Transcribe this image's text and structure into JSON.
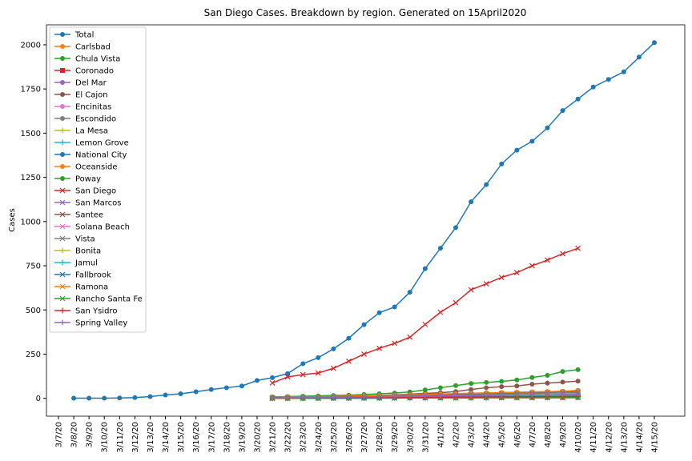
{
  "chart_data": {
    "type": "line",
    "title": "San Diego Cases. Breakdown by region. Generated on 15April2020",
    "ylabel": "Cases",
    "categories": [
      "3/7/20",
      "3/8/20",
      "3/9/20",
      "3/10/20",
      "3/11/20",
      "3/12/20",
      "3/13/20",
      "3/14/20",
      "3/15/20",
      "3/16/20",
      "3/17/20",
      "3/18/20",
      "3/19/20",
      "3/20/20",
      "3/21/20",
      "3/22/20",
      "3/23/20",
      "3/24/20",
      "3/25/20",
      "3/26/20",
      "3/27/20",
      "3/28/20",
      "3/29/20",
      "3/30/20",
      "3/31/20",
      "4/1/20",
      "4/2/20",
      "4/3/20",
      "4/4/20",
      "4/5/20",
      "4/6/20",
      "4/7/20",
      "4/8/20",
      "4/9/20",
      "4/10/20",
      "4/11/20",
      "4/12/20",
      "4/13/20",
      "4/14/20",
      "4/15/20"
    ],
    "ylim": [
      -101,
      2113
    ],
    "yticks": [
      0,
      250,
      500,
      750,
      1000,
      1250,
      1500,
      1750,
      2000
    ],
    "grid": false,
    "legend": "upper left",
    "series": [
      {
        "name": "Total",
        "color": "#1f77b4",
        "marker": "o",
        "values": [
          null,
          1,
          1,
          1,
          2,
          4,
          10,
          19,
          26,
          37,
          50,
          60,
          70,
          101,
          117,
          140,
          196,
          230,
          280,
          340,
          417,
          484,
          517,
          600,
          734,
          849,
          966,
          1112,
          1209,
          1326,
          1404,
          1454,
          1530,
          1628,
          1693,
          1761,
          1804,
          1847,
          1930,
          2012
        ]
      },
      {
        "name": "Carlsbad",
        "color": "#ff7f0e",
        "marker": "o",
        "values": [
          null,
          null,
          null,
          null,
          null,
          null,
          null,
          null,
          null,
          null,
          null,
          null,
          null,
          null,
          8,
          9,
          10,
          11,
          12,
          13,
          15,
          17,
          19,
          21,
          23,
          25,
          27,
          29,
          31,
          33,
          35,
          36,
          38,
          39,
          40,
          null,
          null,
          null,
          null,
          null
        ]
      },
      {
        "name": "Chula Vista",
        "color": "#2ca02c",
        "marker": "o",
        "values": [
          null,
          null,
          null,
          null,
          null,
          null,
          null,
          null,
          null,
          null,
          null,
          null,
          null,
          null,
          8,
          10,
          12,
          14,
          16,
          18,
          22,
          26,
          30,
          36,
          48,
          60,
          72,
          84,
          90,
          96,
          104,
          118,
          130,
          152,
          162,
          null,
          null,
          null,
          null,
          null
        ]
      },
      {
        "name": "Coronado",
        "color": "#d62728",
        "marker": "s",
        "values": [
          null,
          null,
          null,
          null,
          null,
          null,
          null,
          null,
          null,
          null,
          null,
          null,
          null,
          null,
          1,
          1,
          2,
          2,
          2,
          3,
          3,
          4,
          4,
          5,
          5,
          6,
          6,
          7,
          7,
          8,
          8,
          9,
          9,
          10,
          10,
          null,
          null,
          null,
          null,
          null
        ]
      },
      {
        "name": "Del Mar",
        "color": "#9467bd",
        "marker": "o",
        "values": [
          null,
          null,
          null,
          null,
          null,
          null,
          null,
          null,
          null,
          null,
          null,
          null,
          null,
          null,
          0,
          0,
          0,
          1,
          1,
          1,
          1,
          1,
          2,
          2,
          2,
          2,
          2,
          3,
          3,
          3,
          3,
          3,
          3,
          3,
          3,
          null,
          null,
          null,
          null,
          null
        ]
      },
      {
        "name": "El Cajon",
        "color": "#8c564b",
        "marker": "o",
        "values": [
          null,
          null,
          null,
          null,
          null,
          null,
          null,
          null,
          null,
          null,
          null,
          null,
          null,
          null,
          2,
          3,
          4,
          6,
          8,
          10,
          12,
          16,
          20,
          24,
          28,
          32,
          38,
          50,
          60,
          66,
          70,
          80,
          86,
          92,
          97,
          null,
          null,
          null,
          null,
          null
        ]
      },
      {
        "name": "Encinitas",
        "color": "#e377c2",
        "marker": "o",
        "values": [
          null,
          null,
          null,
          null,
          null,
          null,
          null,
          null,
          null,
          null,
          null,
          null,
          null,
          null,
          3,
          3,
          4,
          5,
          6,
          7,
          8,
          9,
          10,
          11,
          12,
          13,
          14,
          15,
          16,
          17,
          18,
          18,
          19,
          20,
          21,
          null,
          null,
          null,
          null,
          null
        ]
      },
      {
        "name": "Escondido",
        "color": "#7f7f7f",
        "marker": "o",
        "values": [
          null,
          null,
          null,
          null,
          null,
          null,
          null,
          null,
          null,
          null,
          null,
          null,
          null,
          null,
          4,
          5,
          6,
          7,
          8,
          10,
          12,
          14,
          16,
          18,
          20,
          22,
          24,
          26,
          28,
          30,
          32,
          34,
          36,
          40,
          45,
          null,
          null,
          null,
          null,
          null
        ]
      },
      {
        "name": "La Mesa",
        "color": "#bcbd22",
        "marker": "+",
        "values": [
          null,
          null,
          null,
          null,
          null,
          null,
          null,
          null,
          null,
          null,
          null,
          null,
          null,
          null,
          2,
          3,
          4,
          5,
          6,
          7,
          8,
          10,
          12,
          14,
          16,
          18,
          20,
          22,
          24,
          25,
          26,
          27,
          28,
          29,
          30,
          null,
          null,
          null,
          null,
          null
        ]
      },
      {
        "name": "Lemon Grove",
        "color": "#17becf",
        "marker": "+",
        "values": [
          null,
          null,
          null,
          null,
          null,
          null,
          null,
          null,
          null,
          null,
          null,
          null,
          null,
          null,
          1,
          1,
          2,
          2,
          3,
          3,
          4,
          5,
          6,
          7,
          8,
          9,
          10,
          11,
          12,
          13,
          14,
          15,
          16,
          17,
          18,
          null,
          null,
          null,
          null,
          null
        ]
      },
      {
        "name": "National City",
        "color": "#1f77b4",
        "marker": "o",
        "values": [
          null,
          null,
          null,
          null,
          null,
          null,
          null,
          null,
          null,
          null,
          null,
          null,
          null,
          null,
          3,
          4,
          5,
          6,
          7,
          8,
          10,
          12,
          14,
          16,
          18,
          20,
          22,
          24,
          26,
          28,
          30,
          32,
          34,
          36,
          38,
          null,
          null,
          null,
          null,
          null
        ]
      },
      {
        "name": "Oceanside",
        "color": "#ff7f0e",
        "marker": "o",
        "values": [
          null,
          null,
          null,
          null,
          null,
          null,
          null,
          null,
          null,
          null,
          null,
          null,
          null,
          null,
          6,
          7,
          8,
          9,
          10,
          12,
          14,
          16,
          18,
          20,
          22,
          24,
          26,
          28,
          30,
          32,
          34,
          36,
          38,
          40,
          42,
          null,
          null,
          null,
          null,
          null
        ]
      },
      {
        "name": "Poway",
        "color": "#2ca02c",
        "marker": "o",
        "values": [
          null,
          null,
          null,
          null,
          null,
          null,
          null,
          null,
          null,
          null,
          null,
          null,
          null,
          null,
          1,
          1,
          1,
          2,
          2,
          3,
          3,
          4,
          4,
          5,
          5,
          6,
          6,
          7,
          7,
          8,
          8,
          9,
          9,
          10,
          10,
          null,
          null,
          null,
          null,
          null
        ]
      },
      {
        "name": "San Diego",
        "color": "#d62728",
        "marker": "x",
        "values": [
          null,
          null,
          null,
          null,
          null,
          null,
          null,
          null,
          null,
          null,
          null,
          null,
          null,
          null,
          87,
          121,
          134,
          143,
          170,
          210,
          250,
          283,
          311,
          346,
          418,
          487,
          541,
          614,
          648,
          684,
          711,
          750,
          782,
          818,
          849,
          null,
          null,
          null,
          null,
          null
        ]
      },
      {
        "name": "San Marcos",
        "color": "#9467bd",
        "marker": "x",
        "values": [
          null,
          null,
          null,
          null,
          null,
          null,
          null,
          null,
          null,
          null,
          null,
          null,
          null,
          null,
          2,
          3,
          4,
          5,
          6,
          7,
          8,
          9,
          10,
          11,
          12,
          13,
          14,
          15,
          16,
          17,
          18,
          19,
          20,
          22,
          24,
          null,
          null,
          null,
          null,
          null
        ]
      },
      {
        "name": "Santee",
        "color": "#8c564b",
        "marker": "x",
        "values": [
          null,
          null,
          null,
          null,
          null,
          null,
          null,
          null,
          null,
          null,
          null,
          null,
          null,
          null,
          3,
          4,
          5,
          6,
          7,
          8,
          9,
          10,
          12,
          14,
          16,
          18,
          20,
          22,
          24,
          26,
          28,
          30,
          32,
          34,
          36,
          null,
          null,
          null,
          null,
          null
        ]
      },
      {
        "name": "Solana Beach",
        "color": "#e377c2",
        "marker": "x",
        "values": [
          null,
          null,
          null,
          null,
          null,
          null,
          null,
          null,
          null,
          null,
          null,
          null,
          null,
          null,
          0,
          0,
          1,
          1,
          1,
          1,
          2,
          2,
          2,
          2,
          3,
          3,
          3,
          3,
          4,
          4,
          4,
          4,
          5,
          5,
          5,
          null,
          null,
          null,
          null,
          null
        ]
      },
      {
        "name": "Vista",
        "color": "#7f7f7f",
        "marker": "x",
        "values": [
          null,
          null,
          null,
          null,
          null,
          null,
          null,
          null,
          null,
          null,
          null,
          null,
          null,
          null,
          2,
          3,
          4,
          5,
          6,
          7,
          8,
          9,
          10,
          12,
          14,
          16,
          18,
          20,
          22,
          24,
          26,
          28,
          30,
          32,
          34,
          null,
          null,
          null,
          null,
          null
        ]
      },
      {
        "name": "Bonita",
        "color": "#bcbd22",
        "marker": "+",
        "values": [
          null,
          null,
          null,
          null,
          null,
          null,
          null,
          null,
          null,
          null,
          null,
          null,
          null,
          null,
          0,
          0,
          1,
          1,
          1,
          2,
          2,
          2,
          3,
          3,
          3,
          4,
          4,
          4,
          5,
          5,
          5,
          6,
          6,
          6,
          7,
          null,
          null,
          null,
          null,
          null
        ]
      },
      {
        "name": "Jamul",
        "color": "#17becf",
        "marker": "+",
        "values": [
          null,
          null,
          null,
          null,
          null,
          null,
          null,
          null,
          null,
          null,
          null,
          null,
          null,
          null,
          0,
          0,
          0,
          1,
          1,
          1,
          1,
          2,
          2,
          2,
          2,
          3,
          3,
          3,
          3,
          4,
          4,
          4,
          4,
          5,
          5,
          null,
          null,
          null,
          null,
          null
        ]
      },
      {
        "name": "Fallbrook",
        "color": "#1f77b4",
        "marker": "x",
        "values": [
          null,
          null,
          null,
          null,
          null,
          null,
          null,
          null,
          null,
          null,
          null,
          null,
          null,
          null,
          0,
          0,
          1,
          1,
          1,
          1,
          2,
          2,
          2,
          3,
          3,
          3,
          4,
          4,
          4,
          5,
          5,
          5,
          6,
          6,
          6,
          null,
          null,
          null,
          null,
          null
        ]
      },
      {
        "name": "Ramona",
        "color": "#ff7f0e",
        "marker": "x",
        "values": [
          null,
          null,
          null,
          null,
          null,
          null,
          null,
          null,
          null,
          null,
          null,
          null,
          null,
          null,
          0,
          1,
          1,
          1,
          2,
          2,
          2,
          3,
          3,
          3,
          4,
          4,
          4,
          5,
          5,
          5,
          6,
          6,
          6,
          7,
          7,
          null,
          null,
          null,
          null,
          null
        ]
      },
      {
        "name": "Rancho Santa Fe",
        "color": "#2ca02c",
        "marker": "x",
        "values": [
          null,
          null,
          null,
          null,
          null,
          null,
          null,
          null,
          null,
          null,
          null,
          null,
          null,
          null,
          0,
          0,
          0,
          0,
          1,
          1,
          1,
          1,
          1,
          2,
          2,
          2,
          2,
          2,
          3,
          3,
          3,
          3,
          3,
          3,
          4,
          null,
          null,
          null,
          null,
          null
        ]
      },
      {
        "name": "San Ysidro",
        "color": "#d62728",
        "marker": "+",
        "values": [
          null,
          null,
          null,
          null,
          null,
          null,
          null,
          null,
          null,
          null,
          null,
          null,
          null,
          null,
          1,
          1,
          2,
          2,
          3,
          3,
          4,
          4,
          5,
          5,
          6,
          6,
          7,
          7,
          8,
          8,
          9,
          9,
          10,
          10,
          11,
          null,
          null,
          null,
          null,
          null
        ]
      },
      {
        "name": "Spring Valley",
        "color": "#9467bd",
        "marker": "+",
        "values": [
          null,
          null,
          null,
          null,
          null,
          null,
          null,
          null,
          null,
          null,
          null,
          null,
          null,
          null,
          2,
          3,
          4,
          5,
          6,
          7,
          8,
          9,
          10,
          11,
          12,
          13,
          14,
          15,
          16,
          17,
          18,
          19,
          20,
          22,
          24,
          null,
          null,
          null,
          null,
          null
        ]
      }
    ]
  }
}
